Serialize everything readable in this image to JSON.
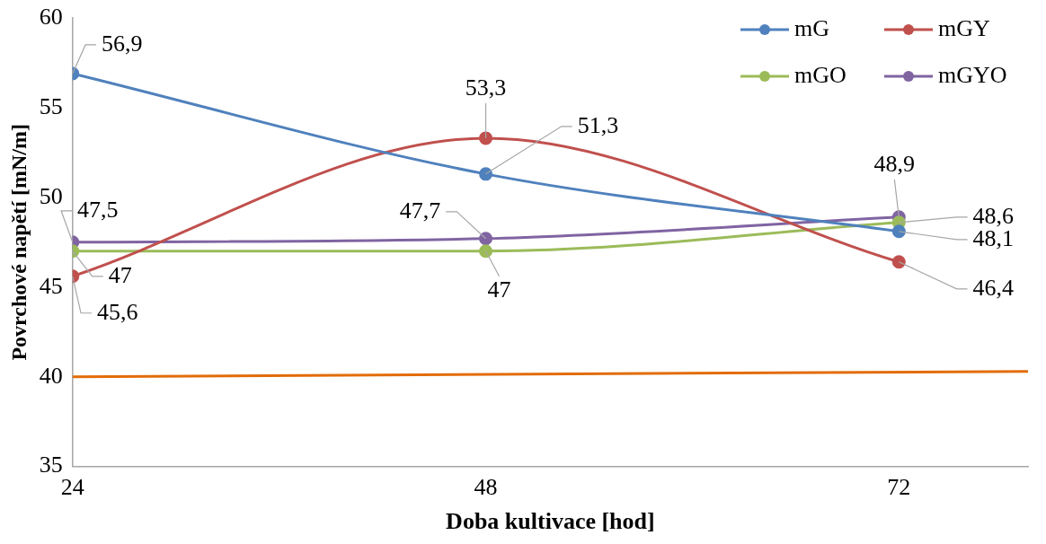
{
  "chart_data": {
    "type": "line",
    "xlabel": "Doba kultivace [hod]",
    "ylabel": "Povrchové napětí [mN/m]",
    "x": [
      24,
      48,
      72
    ],
    "xlim": [
      24,
      79.5
    ],
    "xticks": [
      24,
      48,
      72
    ],
    "ylim": [
      35,
      60
    ],
    "yticks": [
      35,
      40,
      45,
      50,
      55,
      60
    ],
    "grid": false,
    "legend": "top right",
    "marker": "circle",
    "line_style": "solid",
    "series": [
      {
        "name": "mG",
        "color": "#4f81bd",
        "values": [
          56.9,
          51.3,
          48.1
        ],
        "value_labels": [
          "56,9",
          "51,3",
          "48,1"
        ]
      },
      {
        "name": "mGY",
        "color": "#c0504d",
        "values": [
          45.6,
          53.3,
          46.4
        ],
        "value_labels": [
          "45,6",
          "53,3",
          "46,4"
        ]
      },
      {
        "name": "mGO",
        "color": "#9bbb59",
        "values": [
          47,
          47,
          48.6
        ],
        "value_labels": [
          "47",
          "47",
          "48,6"
        ]
      },
      {
        "name": "mGYO",
        "color": "#8064a2",
        "values": [
          47.5,
          47.7,
          48.9
        ],
        "value_labels": [
          "47,5",
          "47,7",
          "48,9"
        ]
      },
      {
        "color": "#e36c09",
        "x": [
          24,
          79.5
        ],
        "values": [
          40,
          40.3
        ],
        "marker": "none"
      }
    ]
  }
}
